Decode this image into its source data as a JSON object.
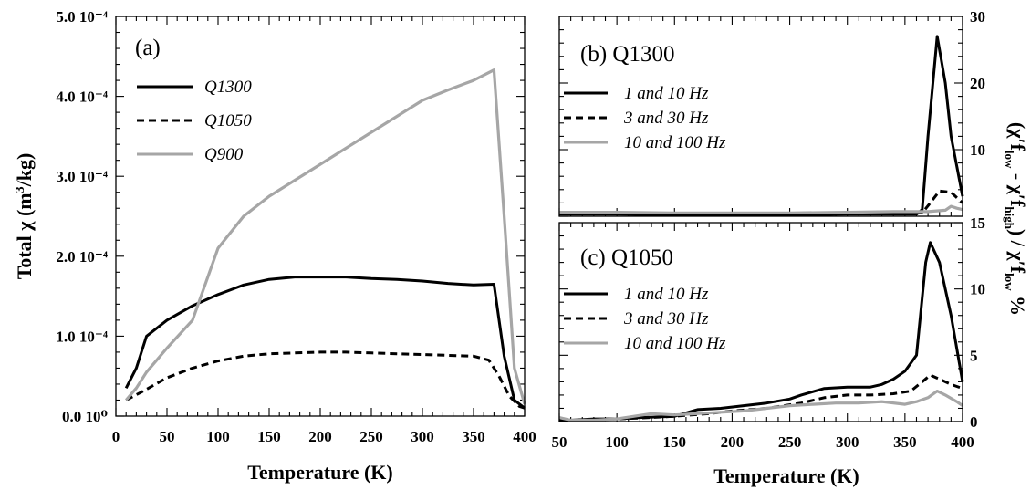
{
  "chart_data": [
    {
      "panel": "a",
      "type": "line",
      "panel_label": "(a)",
      "xlabel": "Temperature (K)",
      "ylabel": "Total χ (m³/kg)",
      "xlim": [
        0,
        400
      ],
      "ylim": [
        0,
        0.0005
      ],
      "x_ticks": [
        "0",
        "50",
        "100",
        "150",
        "200",
        "250",
        "300",
        "350",
        "400"
      ],
      "y_ticks": [
        "0.0 10⁰",
        "1.0 10⁻⁴",
        "2.0 10⁻⁴",
        "3.0 10⁻⁴",
        "4.0 10⁻⁴",
        "5.0 10⁻⁴"
      ],
      "legend_position": "top-left",
      "series": [
        {
          "name": "Q1300",
          "color": "#000000",
          "dash": "solid",
          "points": [
            [
              10,
              3.5e-05
            ],
            [
              20,
              6e-05
            ],
            [
              30,
              0.0001
            ],
            [
              50,
              0.00012
            ],
            [
              75,
              0.000138
            ],
            [
              100,
              0.000152
            ],
            [
              125,
              0.000164
            ],
            [
              150,
              0.000171
            ],
            [
              175,
              0.000174
            ],
            [
              200,
              0.000174
            ],
            [
              225,
              0.000174
            ],
            [
              250,
              0.000172
            ],
            [
              275,
              0.000171
            ],
            [
              300,
              0.000169
            ],
            [
              325,
              0.000166
            ],
            [
              350,
              0.000164
            ],
            [
              370,
              0.000165
            ],
            [
              380,
              7.5e-05
            ],
            [
              390,
              2e-05
            ],
            [
              400,
              1e-05
            ]
          ]
        },
        {
          "name": "Q1050",
          "color": "#000000",
          "dash": "dashed",
          "points": [
            [
              10,
              2e-05
            ],
            [
              25,
              3e-05
            ],
            [
              50,
              4.8e-05
            ],
            [
              75,
              6e-05
            ],
            [
              100,
              6.9e-05
            ],
            [
              125,
              7.5e-05
            ],
            [
              150,
              7.8e-05
            ],
            [
              175,
              7.9e-05
            ],
            [
              200,
              8e-05
            ],
            [
              225,
              8e-05
            ],
            [
              250,
              7.9e-05
            ],
            [
              275,
              7.8e-05
            ],
            [
              300,
              7.7e-05
            ],
            [
              325,
              7.6e-05
            ],
            [
              350,
              7.5e-05
            ],
            [
              365,
              7e-05
            ],
            [
              375,
              5e-05
            ],
            [
              385,
              2.5e-05
            ],
            [
              395,
              1.2e-05
            ],
            [
              400,
              1e-05
            ]
          ]
        },
        {
          "name": "Q900",
          "color": "#a6a6a6",
          "dash": "solid",
          "points": [
            [
              10,
              2e-05
            ],
            [
              20,
              3.5e-05
            ],
            [
              30,
              5.5e-05
            ],
            [
              50,
              8.5e-05
            ],
            [
              75,
              0.00012
            ],
            [
              100,
              0.00021
            ],
            [
              125,
              0.00025
            ],
            [
              150,
              0.000275
            ],
            [
              175,
              0.000295
            ],
            [
              200,
              0.000315
            ],
            [
              225,
              0.000335
            ],
            [
              250,
              0.000355
            ],
            [
              275,
              0.000375
            ],
            [
              300,
              0.000395
            ],
            [
              325,
              0.000408
            ],
            [
              350,
              0.00042
            ],
            [
              370,
              0.000433
            ],
            [
              380,
              0.00025
            ],
            [
              390,
              6e-05
            ],
            [
              400,
              1.5e-05
            ]
          ]
        }
      ]
    },
    {
      "panel": "b",
      "type": "line",
      "panel_label": "(b) Q1300",
      "xlim": [
        50,
        400
      ],
      "ylim": [
        0,
        30
      ],
      "y_ticks": [
        "10",
        "20",
        "30"
      ],
      "legend_position": "top-left",
      "series": [
        {
          "name": "1 and 10 Hz",
          "color": "#000000",
          "dash": "solid",
          "points": [
            [
              50,
              0.3
            ],
            [
              100,
              0.3
            ],
            [
              150,
              0.2
            ],
            [
              200,
              0.2
            ],
            [
              250,
              0.2
            ],
            [
              300,
              0.3
            ],
            [
              340,
              0.3
            ],
            [
              360,
              0.3
            ],
            [
              365,
              1.0
            ],
            [
              370,
              12.0
            ],
            [
              378,
              27.0
            ],
            [
              385,
              20.0
            ],
            [
              390,
              12.0
            ],
            [
              400,
              3.0
            ]
          ]
        },
        {
          "name": "3 and 30 Hz",
          "color": "#000000",
          "dash": "dashed",
          "points": [
            [
              50,
              0.4
            ],
            [
              100,
              0.4
            ],
            [
              150,
              0.3
            ],
            [
              200,
              0.3
            ],
            [
              250,
              0.3
            ],
            [
              300,
              0.4
            ],
            [
              340,
              0.4
            ],
            [
              365,
              0.5
            ],
            [
              372,
              2.0
            ],
            [
              380,
              3.8
            ],
            [
              390,
              3.6
            ],
            [
              400,
              2.0
            ]
          ]
        },
        {
          "name": "10 and 100 Hz",
          "color": "#a6a6a6",
          "dash": "solid",
          "points": [
            [
              50,
              0.6
            ],
            [
              100,
              0.6
            ],
            [
              150,
              0.5
            ],
            [
              200,
              0.5
            ],
            [
              250,
              0.5
            ],
            [
              300,
              0.6
            ],
            [
              340,
              0.7
            ],
            [
              370,
              0.7
            ],
            [
              385,
              0.9
            ],
            [
              390,
              1.5
            ],
            [
              395,
              1.2
            ],
            [
              400,
              1.0
            ]
          ]
        }
      ]
    },
    {
      "panel": "c",
      "type": "line",
      "panel_label": "(c) Q1050",
      "xlabel": "Temperature (K)",
      "xlim": [
        50,
        400
      ],
      "ylim": [
        0,
        15
      ],
      "x_ticks": [
        "50",
        "100",
        "150",
        "200",
        "250",
        "300",
        "350",
        "400"
      ],
      "y_ticks": [
        "0",
        "5",
        "10",
        "15"
      ],
      "legend_position": "top-left",
      "series": [
        {
          "name": "1 and 10 Hz",
          "color": "#000000",
          "dash": "solid",
          "points": [
            [
              50,
              0.2
            ],
            [
              60,
              0.1
            ],
            [
              80,
              0.2
            ],
            [
              100,
              0.2
            ],
            [
              120,
              0.3
            ],
            [
              150,
              0.4
            ],
            [
              170,
              0.9
            ],
            [
              190,
              1.0
            ],
            [
              210,
              1.2
            ],
            [
              230,
              1.4
            ],
            [
              250,
              1.7
            ],
            [
              260,
              2.0
            ],
            [
              280,
              2.5
            ],
            [
              300,
              2.6
            ],
            [
              320,
              2.6
            ],
            [
              330,
              2.8
            ],
            [
              340,
              3.2
            ],
            [
              350,
              3.8
            ],
            [
              360,
              5.0
            ],
            [
              368,
              12.0
            ],
            [
              372,
              13.5
            ],
            [
              380,
              12.0
            ],
            [
              390,
              8.0
            ],
            [
              400,
              3.0
            ]
          ]
        },
        {
          "name": "3 and 30 Hz",
          "color": "#000000",
          "dash": "dashed",
          "points": [
            [
              50,
              0.1
            ],
            [
              70,
              0.1
            ],
            [
              100,
              0.2
            ],
            [
              130,
              0.3
            ],
            [
              150,
              0.4
            ],
            [
              180,
              0.6
            ],
            [
              200,
              0.8
            ],
            [
              230,
              1.0
            ],
            [
              260,
              1.4
            ],
            [
              280,
              1.8
            ],
            [
              300,
              2.0
            ],
            [
              320,
              2.0
            ],
            [
              340,
              2.1
            ],
            [
              355,
              2.3
            ],
            [
              365,
              3.0
            ],
            [
              372,
              3.5
            ],
            [
              380,
              3.2
            ],
            [
              390,
              2.8
            ],
            [
              400,
              2.5
            ]
          ]
        },
        {
          "name": "10 and 100 Hz",
          "color": "#a6a6a6",
          "dash": "solid",
          "points": [
            [
              50,
              0.3
            ],
            [
              60,
              0.1
            ],
            [
              80,
              0.1
            ],
            [
              100,
              0.2
            ],
            [
              130,
              0.6
            ],
            [
              150,
              0.5
            ],
            [
              170,
              0.6
            ],
            [
              190,
              0.7
            ],
            [
              210,
              0.8
            ],
            [
              230,
              1.0
            ],
            [
              250,
              1.2
            ],
            [
              270,
              1.3
            ],
            [
              290,
              1.4
            ],
            [
              310,
              1.4
            ],
            [
              330,
              1.5
            ],
            [
              350,
              1.3
            ],
            [
              360,
              1.5
            ],
            [
              370,
              1.8
            ],
            [
              378,
              2.3
            ],
            [
              385,
              2.0
            ],
            [
              395,
              1.5
            ],
            [
              400,
              1.2
            ]
          ]
        }
      ]
    }
  ],
  "right_axis_label": "(χ′f_low − χ′f_high) / χ′f_low %"
}
